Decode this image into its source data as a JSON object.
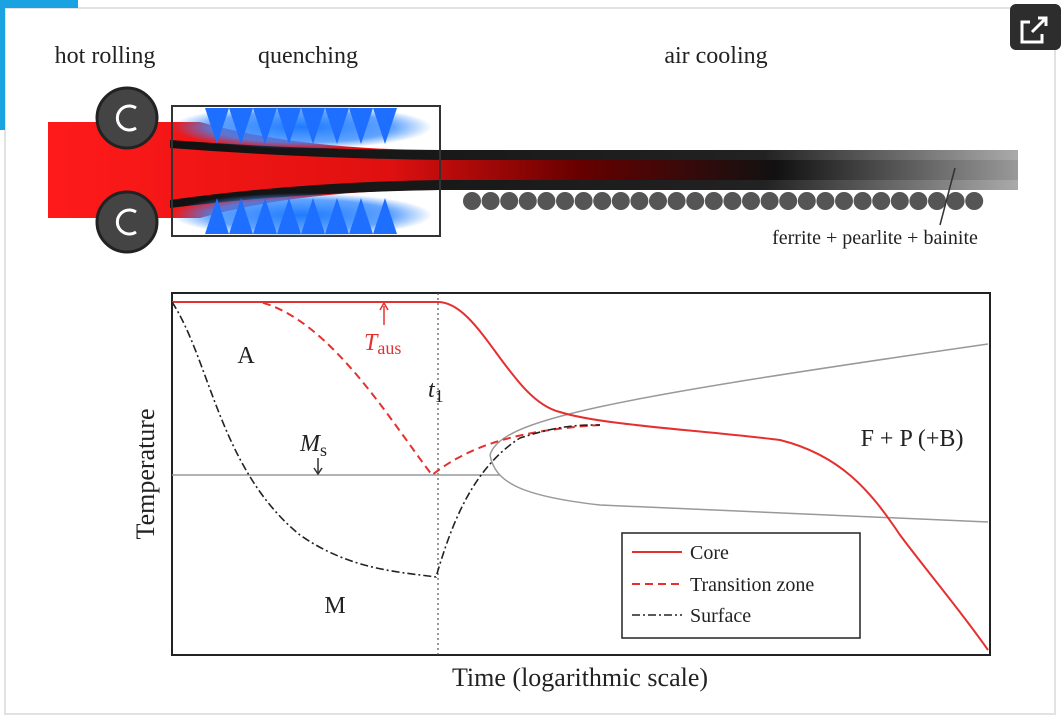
{
  "process": {
    "stages": [
      "hot rolling",
      "quenching",
      "air cooling"
    ],
    "microstructure": "ferrite + pearlite + bainite"
  },
  "diagram": {
    "regions": {
      "austenite": "A",
      "martensite": "M",
      "ferrite_pearlite": "F + P (+B)"
    },
    "austenitization": {
      "base": "T",
      "sub": "aus"
    },
    "time_mark": {
      "base": "t",
      "sub": "1"
    },
    "martensite_start": {
      "base": "M",
      "sub": "s"
    },
    "y_label": "Temperature",
    "x_label": "Time (logarithmic scale)",
    "legend": [
      "Core",
      "Transition zone",
      "Surface"
    ]
  }
}
